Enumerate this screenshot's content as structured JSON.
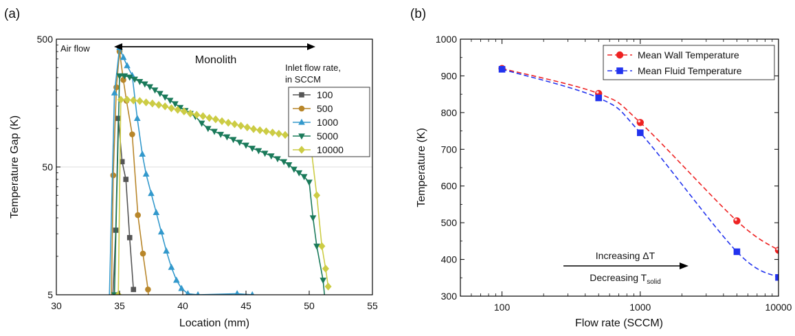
{
  "chart_data": [
    {
      "panel_label": "(a)",
      "type": "line",
      "xlabel": "Location (mm)",
      "ylabel": "Temperature Gap (K)",
      "xlim": [
        30,
        55
      ],
      "ylim": [
        5,
        500
      ],
      "yscale": "log",
      "xticks": [
        "30",
        "35",
        "40",
        "45",
        "50",
        "55"
      ],
      "yticks": [
        "5",
        "50",
        "500"
      ],
      "annotations": {
        "left": "Air flow",
        "span": "Monolith"
      },
      "legend_title": [
        "Inlet flow rate,",
        "in SCCM"
      ],
      "legend_position": "right",
      "series": [
        {
          "name": "100",
          "color": "#555555",
          "marker": "square",
          "x": [
            34.3,
            34.7,
            34.9,
            35.2,
            35.5,
            35.8,
            36.1
          ],
          "y": [
            2,
            16,
            120,
            55,
            40,
            14,
            5.5
          ]
        },
        {
          "name": "500",
          "color": "#b8862a",
          "marker": "circle",
          "x": [
            34.3,
            34.5,
            34.75,
            35.0,
            35.3,
            35.55,
            36.0,
            36.45,
            36.85,
            37.25,
            37.5
          ],
          "y": [
            2,
            43,
            210,
            400,
            240,
            165,
            90,
            21,
            10.5,
            5.5,
            2
          ]
        },
        {
          "name": "1000",
          "color": "#3399cc",
          "marker": "triangle",
          "x": [
            34.1,
            34.6,
            35.0,
            35.3,
            35.6,
            36.0,
            36.4,
            36.8,
            37.1,
            37.5,
            37.9,
            38.3,
            38.7,
            39.1,
            39.5,
            39.9,
            40.4,
            41.2,
            44.3,
            45.5
          ],
          "y": [
            2,
            190,
            430,
            360,
            310,
            260,
            120,
            63,
            44,
            31,
            22,
            15.5,
            11,
            8.2,
            6.5,
            5.6,
            5.1,
            5.0,
            5.1,
            5.0
          ]
        },
        {
          "name": "5000",
          "color": "#1a7a5a",
          "marker": "triangle-down",
          "x": [
            34.6,
            35.0,
            35.4,
            35.8,
            36.2,
            36.6,
            37.0,
            37.4,
            37.8,
            38.2,
            38.6,
            39.0,
            39.4,
            39.8,
            40.2,
            40.6,
            41.0,
            41.5,
            42.0,
            42.5,
            43.0,
            43.5,
            44.0,
            44.5,
            45.0,
            45.5,
            46.0,
            46.5,
            47.0,
            47.5,
            48.0,
            48.4,
            48.8,
            49.2,
            49.6,
            50.0,
            50.3,
            50.6,
            51.1,
            51.3
          ],
          "y": [
            5,
            258,
            258,
            252,
            243,
            233,
            223,
            212,
            200,
            188,
            176,
            166,
            156,
            146,
            138,
            131,
            124,
            110,
            100,
            95,
            90,
            86,
            82,
            78,
            74,
            70,
            67,
            64,
            61,
            58,
            55,
            52,
            48,
            45,
            42,
            38,
            20,
            12,
            6.5,
            4
          ]
        },
        {
          "name": "10000",
          "color": "#cccc44",
          "marker": "diamond",
          "x": [
            34.9,
            35.1,
            35.6,
            36.1,
            36.6,
            37.1,
            37.6,
            38.1,
            38.6,
            39.1,
            39.6,
            40.1,
            40.6,
            41.1,
            41.6,
            42.1,
            42.6,
            43.1,
            43.6,
            44.1,
            44.6,
            45.1,
            45.6,
            46.1,
            46.6,
            47.1,
            47.6,
            48.1,
            48.6,
            49.1,
            49.6,
            50.1,
            50.6,
            51.0,
            51.3,
            51.5
          ],
          "y": [
            5,
            168,
            168,
            166,
            164,
            160,
            157,
            153,
            149,
            144,
            140,
            136,
            131,
            128,
            125,
            121,
            118,
            114,
            111,
            108,
            105,
            102,
            99,
            97,
            95,
            93,
            91,
            89,
            87,
            85,
            82,
            78,
            30,
            12,
            8,
            5.8
          ]
        }
      ]
    },
    {
      "panel_label": "(b)",
      "type": "line",
      "xlabel": "Flow rate (SCCM)",
      "ylabel": "Temperature (K)",
      "xlim": [
        50,
        10000
      ],
      "ylim": [
        300,
        1000
      ],
      "xscale": "log",
      "xticks": [
        "100",
        "1000",
        "10000"
      ],
      "yticks": [
        "300",
        "400",
        "500",
        "600",
        "700",
        "800",
        "900",
        "1000"
      ],
      "annotations": {
        "above_arrow": "Increasing ΔT",
        "below_arrow_main": "Decreasing T",
        "below_arrow_sub": "solid"
      },
      "legend_position": "top-right",
      "series": [
        {
          "name": "Mean Wall Temperature",
          "color": "#ee2222",
          "marker": "circle",
          "x": [
            100,
            500,
            1000,
            5000,
            10000
          ],
          "y": [
            920,
            852,
            773,
            505,
            425
          ]
        },
        {
          "name": "Mean Fluid Temperature",
          "color": "#2233ee",
          "marker": "square",
          "x": [
            100,
            500,
            1000,
            5000,
            10000
          ],
          "y": [
            918,
            840,
            745,
            421,
            351
          ]
        }
      ]
    }
  ]
}
